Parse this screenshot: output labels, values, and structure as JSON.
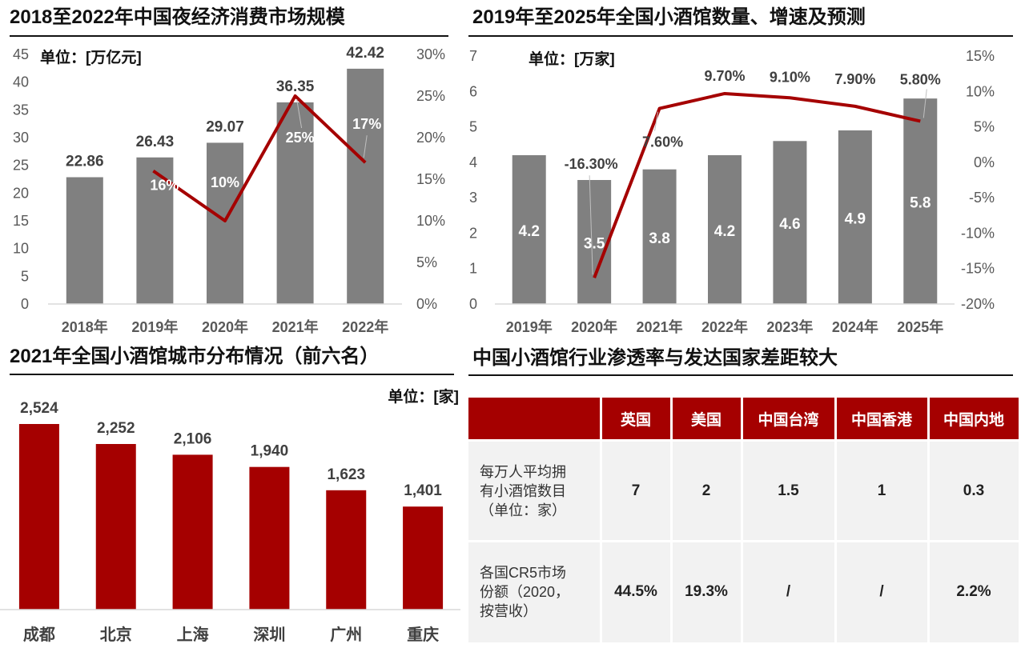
{
  "panels": {
    "p1_title": "2018至2022年中国夜经济消费市场规模",
    "p2_title": "2019年至2025年全国小酒馆数量、增速及预测",
    "p3_title": "2021年全国小酒馆城市分布情况（前六名）",
    "p4_title": "中国小酒馆行业渗透率与发达国家差距较大"
  },
  "chart_data": [
    {
      "type": "bar",
      "unit_label": "单位：[万亿元]",
      "categories": [
        "2018年",
        "2019年",
        "2020年",
        "2021年",
        "2022年"
      ],
      "values": [
        22.86,
        26.43,
        29.07,
        36.35,
        42.42
      ],
      "value_labels": [
        "22.86",
        "26.43",
        "29.07",
        "36.35",
        "42.42"
      ],
      "growth": [
        null,
        16,
        10,
        25,
        17
      ],
      "growth_labels": [
        "",
        "16%",
        "10%",
        "25%",
        "17%"
      ],
      "ylim": [
        0,
        45
      ],
      "yticks": [
        "0",
        "5",
        "10",
        "15",
        "20",
        "25",
        "30",
        "35",
        "40",
        "45"
      ],
      "y2lim": [
        0,
        30
      ],
      "y2ticks": [
        "0%",
        "5%",
        "10%",
        "15%",
        "20%",
        "25%",
        "30%"
      ],
      "colors": {
        "bar": "#808080",
        "line": "#a50000"
      }
    },
    {
      "type": "bar",
      "unit_label": "单位：[万家]",
      "categories": [
        "2019年",
        "2020年",
        "2021年",
        "2022年",
        "2023年",
        "2024年",
        "2025年"
      ],
      "values": [
        4.2,
        3.5,
        3.8,
        4.2,
        4.6,
        4.9,
        5.8
      ],
      "value_labels": [
        "4.2",
        "3.5",
        "3.8",
        "4.2",
        "4.6",
        "4.9",
        "5.8"
      ],
      "growth": [
        null,
        -16.3,
        7.6,
        9.7,
        9.1,
        7.9,
        5.8
      ],
      "growth_labels": [
        "",
        "-16.30%",
        "7.60%",
        "9.70%",
        "9.10%",
        "7.90%",
        "5.80%"
      ],
      "ylim": [
        0,
        7
      ],
      "yticks": [
        "0",
        "1",
        "2",
        "3",
        "4",
        "5",
        "6",
        "7"
      ],
      "y2lim": [
        -20,
        15
      ],
      "y2ticks": [
        "-20%",
        "-15%",
        "-10%",
        "-5%",
        "0%",
        "5%",
        "10%",
        "15%"
      ],
      "colors": {
        "bar": "#808080",
        "line": "#a50000"
      }
    },
    {
      "type": "bar",
      "unit_label": "单位：[家]",
      "categories": [
        "成都",
        "北京",
        "上海",
        "深圳",
        "广州",
        "重庆"
      ],
      "values": [
        2524,
        2252,
        2106,
        1940,
        1623,
        1401
      ],
      "value_labels": [
        "2,524",
        "2,252",
        "2,106",
        "1,940",
        "1,623",
        "1,401"
      ],
      "colors": {
        "bar": "#a50000"
      }
    },
    {
      "type": "table",
      "headers": [
        "",
        "英国",
        "美国",
        "中国台湾",
        "中国香港",
        "中国内地"
      ],
      "rows": [
        {
          "label": "每万人平均拥有小酒馆数目（单位：家）",
          "label_lines": [
            "每万人平均拥",
            "有小酒馆数目",
            "（单位：家）"
          ],
          "cells": [
            "7",
            "2",
            "1.5",
            "1",
            "0.3"
          ]
        },
        {
          "label": "各国CR5市场份额（2020，按营收）",
          "label_lines": [
            "各国CR5市场",
            "份额（2020，",
            "按营收）"
          ],
          "cells": [
            "44.5%",
            "19.3%",
            "/",
            "/",
            "2.2%"
          ]
        }
      ],
      "colors": {
        "header_bg": "#a50000",
        "cell_bg": "#f2f2f2"
      }
    }
  ]
}
